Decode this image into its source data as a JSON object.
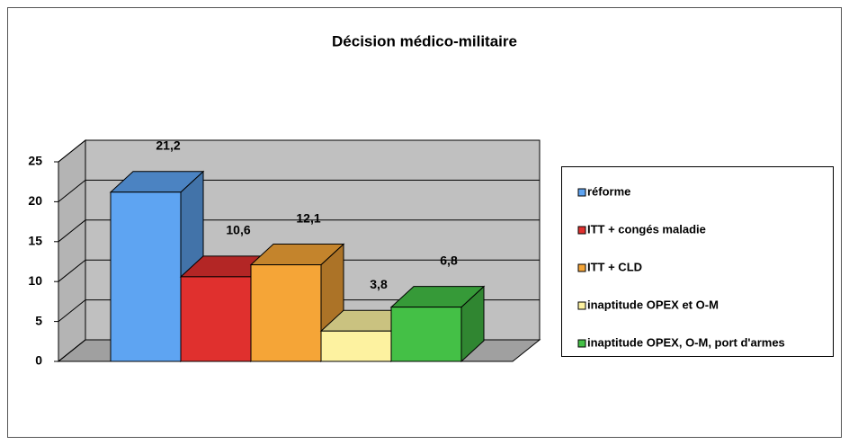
{
  "chart_data": {
    "type": "bar3d",
    "title": "Décision médico-militaire",
    "series": [
      {
        "name": "réforme",
        "color": "#5ea4f2",
        "values": [
          21.2
        ],
        "value_labels": [
          "21,2"
        ]
      },
      {
        "name": "ITT + congés maladie",
        "color": "#e0302e",
        "values": [
          10.6
        ],
        "value_labels": [
          "10,6"
        ]
      },
      {
        "name": "ITT + CLD",
        "color": "#f5a537",
        "values": [
          12.1
        ],
        "value_labels": [
          "12,1"
        ]
      },
      {
        "name": "inaptitude OPEX et O-M",
        "color": "#fdf2a0",
        "values": [
          3.8
        ],
        "value_labels": [
          "3,8"
        ]
      },
      {
        "name": "inaptitude OPEX, O-M, port d'armes",
        "color": "#44c046",
        "values": [
          6.8
        ],
        "value_labels": [
          "6,8"
        ]
      }
    ],
    "ylim": [
      0,
      25
    ],
    "yticks": [
      0,
      5,
      10,
      15,
      20,
      25
    ],
    "grid": true,
    "legend": "right"
  }
}
